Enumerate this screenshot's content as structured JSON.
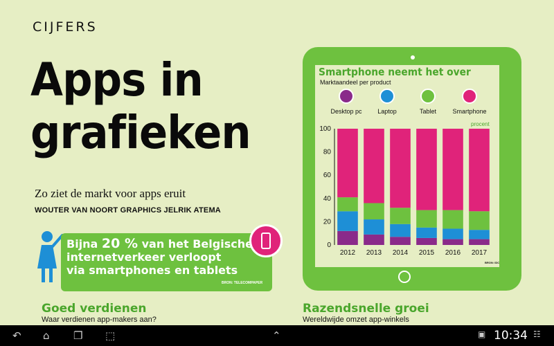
{
  "magazine": {
    "section": "CIJFERS",
    "headline_line1": "Apps in",
    "headline_line2": "grafieken",
    "lead": "Zo ziet de markt voor apps eruit",
    "byline": "WOUTER VAN NOORT GRAPHICS JELRIK ATEMA"
  },
  "callout": {
    "prefix": "Bijna ",
    "percent": "20 %",
    "rest_line1": " van het Belgische",
    "line2": "internetverkeer verloopt",
    "line3": "via smartphones en tablets",
    "source": "BRON: TELECOMPAPER"
  },
  "sections": [
    {
      "title": "Goed verdienen",
      "desc": "Waar verdienen app-makers aan?"
    },
    {
      "title": "Razendsnelle groei",
      "desc": "Wereldwijde omzet app-winkels"
    }
  ],
  "chart_data": {
    "type": "bar",
    "stacked": true,
    "title": "Smartphone neemt het over",
    "subtitle": "Marktaandeel per product",
    "unit_label": "procent",
    "source": "BRON: IDC",
    "categories": [
      "2012",
      "2013",
      "2014",
      "2015",
      "2016",
      "2017"
    ],
    "ylim": [
      0,
      100
    ],
    "yticks": [
      0,
      20,
      40,
      60,
      80,
      100
    ],
    "series": [
      {
        "name": "Desktop pc",
        "color": "#8a2a8a",
        "values": [
          12,
          9,
          7,
          6,
          5,
          5
        ]
      },
      {
        "name": "Laptop",
        "color": "#1e8fd6",
        "values": [
          17,
          13,
          11,
          9,
          9,
          8
        ]
      },
      {
        "name": "Tablet",
        "color": "#6ec13f",
        "values": [
          12,
          14,
          14,
          15,
          16,
          16
        ]
      },
      {
        "name": "Smartphone",
        "color": "#e0237a",
        "values": [
          59,
          64,
          68,
          70,
          70,
          71
        ]
      }
    ],
    "legend_position": "top",
    "grid": false
  },
  "navbar": {
    "clock": "10:34",
    "back_icon": "back-icon",
    "home_icon": "home-icon",
    "recent_icon": "recent-apps-icon",
    "screenshot_icon": "screenshot-icon",
    "up_icon": "chevron-up-icon"
  }
}
